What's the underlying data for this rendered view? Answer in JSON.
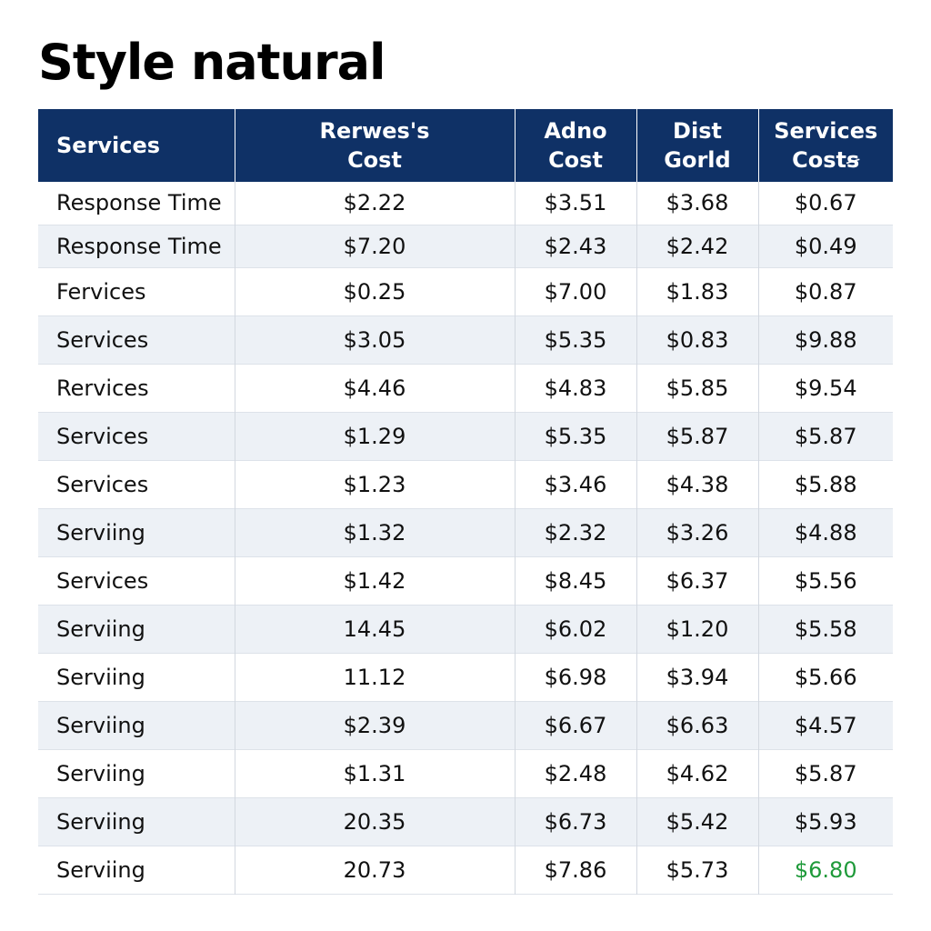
{
  "title": "Style natural",
  "highlight_color": "#1f9a3a",
  "header_color": "#0f3166",
  "table": {
    "headers": [
      [
        "Services"
      ],
      [
        "Rerwes's",
        "Cost"
      ],
      [
        "Adno",
        "Cost"
      ],
      [
        "Dist",
        "Gorld"
      ],
      [
        "Services",
        "Costꞩ"
      ]
    ],
    "rows": [
      [
        "Response Time",
        "$2.22",
        "$3.51",
        "$3.68",
        "$0.67"
      ],
      [
        "Response Time",
        "$7.20",
        "$2.43",
        "$2.42",
        "$0.49"
      ],
      [
        "Fervices",
        "$0.25",
        "$7.00",
        "$1.83",
        "$0.87"
      ],
      [
        "Services",
        "$3.05",
        "$5.35",
        "$0.83",
        "$9.88"
      ],
      [
        "Rervices",
        "$4.46",
        "$4.83",
        "$5.85",
        "$9.54"
      ],
      [
        "Services",
        "$1.29",
        "$5.35",
        "$5.87",
        "$5.87"
      ],
      [
        "Services",
        "$1.23",
        "$3.46",
        "$4.38",
        "$5.88"
      ],
      [
        "Serviing",
        "$1.32",
        "$2.32",
        "$3.26",
        "$4.88"
      ],
      [
        "Services",
        "$1.42",
        "$8.45",
        "$6.37",
        "$5.56"
      ],
      [
        "Serviing",
        "14.45",
        "$6.02",
        "$1.20",
        "$5.58"
      ],
      [
        "Serviing",
        "11.12",
        "$6.98",
        "$3.94",
        "$5.66"
      ],
      [
        "Serviing",
        "$2.39",
        "$6.67",
        "$6.63",
        "$4.57"
      ],
      [
        "Serviing",
        "$1.31",
        "$2.48",
        "$4.62",
        "$5.87"
      ],
      [
        "Serviing",
        "20.35",
        "$6.73",
        "$5.42",
        "$5.93"
      ],
      [
        "Serviing",
        "20.73",
        "$7.86",
        "$5.73",
        "$6.80"
      ]
    ],
    "highlighted_cell": {
      "row": 14,
      "col": 4
    }
  }
}
